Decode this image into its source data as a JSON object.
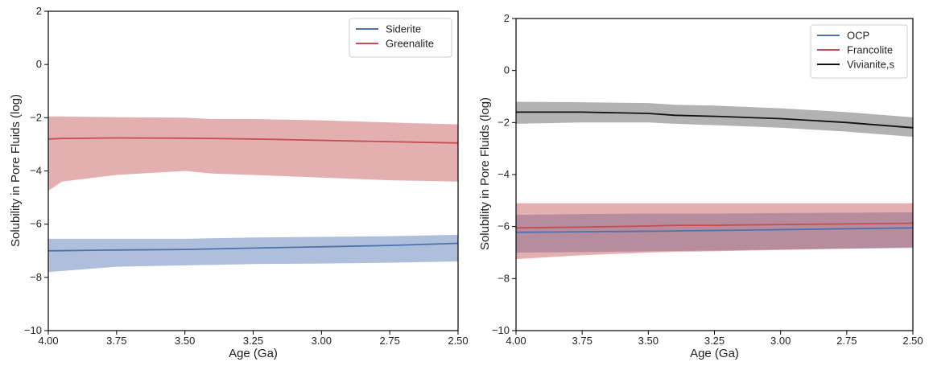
{
  "chart_data": [
    {
      "type": "line",
      "xlabel": "Age (Ga)",
      "ylabel": "Solubility in Pore Fluids (log)",
      "xlim": [
        4.0,
        2.5
      ],
      "ylim": [
        -10,
        2
      ],
      "xticks": [
        4.0,
        3.75,
        3.5,
        3.25,
        3.0,
        2.75,
        2.5
      ],
      "xtick_labels": [
        "4.00",
        "3.75",
        "3.50",
        "3.25",
        "3.00",
        "2.75",
        "2.50"
      ],
      "yticks": [
        2,
        0,
        -2,
        -4,
        -6,
        -8,
        -10
      ],
      "ytick_labels": [
        "2",
        "0",
        "−2",
        "−4",
        "−6",
        "−8",
        "−10"
      ],
      "legend_position": "top-right",
      "series": [
        {
          "name": "Siderite",
          "color": "#4c72b0",
          "band_color": "#4c72b0",
          "x": [
            4.0,
            3.75,
            3.5,
            3.25,
            3.0,
            2.75,
            2.5
          ],
          "y": [
            -7.0,
            -6.97,
            -6.95,
            -6.9,
            -6.85,
            -6.8,
            -6.72
          ],
          "lower": [
            -7.8,
            -7.6,
            -7.55,
            -7.5,
            -7.48,
            -7.45,
            -7.4
          ],
          "upper": [
            -6.55,
            -6.55,
            -6.55,
            -6.5,
            -6.48,
            -6.45,
            -6.4
          ]
        },
        {
          "name": "Greenalite",
          "color": "#c44e52",
          "band_color": "#c44e52",
          "x": [
            4.0,
            3.95,
            3.75,
            3.5,
            3.4,
            3.25,
            3.0,
            2.75,
            2.5
          ],
          "y": [
            -2.8,
            -2.78,
            -2.76,
            -2.77,
            -2.78,
            -2.8,
            -2.85,
            -2.9,
            -2.95
          ],
          "lower": [
            -4.75,
            -4.4,
            -4.15,
            -4.0,
            -4.1,
            -4.15,
            -4.25,
            -4.35,
            -4.4
          ],
          "upper": [
            -1.95,
            -1.95,
            -1.98,
            -2.0,
            -2.05,
            -2.05,
            -2.1,
            -2.18,
            -2.25
          ]
        }
      ]
    },
    {
      "type": "line",
      "xlabel": "Age (Ga)",
      "ylabel": "Solubility in Pore Fluids (log)",
      "xlim": [
        4.0,
        2.5
      ],
      "ylim": [
        -10,
        2
      ],
      "xticks": [
        4.0,
        3.75,
        3.5,
        3.25,
        3.0,
        2.75,
        2.5
      ],
      "xtick_labels": [
        "4.00",
        "3.75",
        "3.50",
        "3.25",
        "3.00",
        "2.75",
        "2.50"
      ],
      "yticks": [
        2,
        0,
        -2,
        -4,
        -6,
        -8,
        -10
      ],
      "ytick_labels": [
        "2",
        "0",
        "−2",
        "−4",
        "−6",
        "−8",
        "−10"
      ],
      "legend_position": "top-right",
      "series": [
        {
          "name": "OCP",
          "color": "#4c72b0",
          "band_color": "#4c72b0",
          "x": [
            4.0,
            3.75,
            3.5,
            3.25,
            3.0,
            2.75,
            2.5
          ],
          "y": [
            -6.22,
            -6.2,
            -6.18,
            -6.15,
            -6.12,
            -6.08,
            -6.05
          ],
          "lower": [
            -7.0,
            -6.98,
            -6.95,
            -6.92,
            -6.88,
            -6.85,
            -6.82
          ],
          "upper": [
            -5.55,
            -5.52,
            -5.5,
            -5.5,
            -5.48,
            -5.47,
            -5.45
          ]
        },
        {
          "name": "Francolite",
          "color": "#c44e52",
          "band_color": "#c44e52",
          "x": [
            4.0,
            3.75,
            3.5,
            3.4,
            3.25,
            3.0,
            2.75,
            2.5
          ],
          "y": [
            -6.05,
            -6.02,
            -5.98,
            -5.95,
            -5.95,
            -5.92,
            -5.9,
            -5.87
          ],
          "lower": [
            -7.25,
            -7.1,
            -7.0,
            -6.97,
            -6.95,
            -6.9,
            -6.85,
            -6.8
          ],
          "upper": [
            -5.1,
            -5.1,
            -5.1,
            -5.1,
            -5.1,
            -5.1,
            -5.1,
            -5.1
          ]
        },
        {
          "name": "Vivianite,s",
          "color": "#111111",
          "band_color": "#555555",
          "x": [
            4.0,
            3.75,
            3.5,
            3.4,
            3.25,
            3.0,
            2.75,
            2.5
          ],
          "y": [
            -1.6,
            -1.6,
            -1.65,
            -1.72,
            -1.76,
            -1.85,
            -2.0,
            -2.2
          ],
          "lower": [
            -2.05,
            -2.0,
            -2.0,
            -2.05,
            -2.1,
            -2.2,
            -2.35,
            -2.55
          ],
          "upper": [
            -1.2,
            -1.22,
            -1.25,
            -1.32,
            -1.35,
            -1.45,
            -1.6,
            -1.8
          ]
        }
      ]
    }
  ]
}
